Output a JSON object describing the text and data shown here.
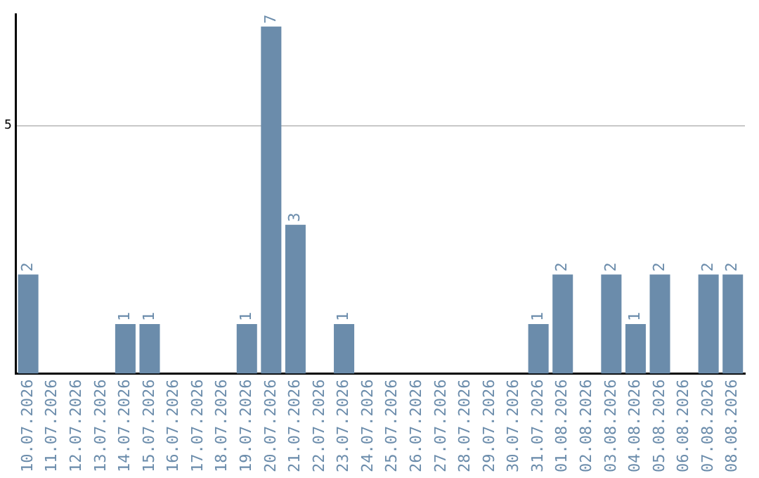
{
  "chart_data": {
    "type": "bar",
    "categories": [
      "10.07.2026",
      "11.07.2026",
      "12.07.2026",
      "13.07.2026",
      "14.07.2026",
      "15.07.2026",
      "16.07.2026",
      "17.07.2026",
      "18.07.2026",
      "19.07.2026",
      "20.07.2026",
      "21.07.2026",
      "22.07.2026",
      "23.07.2026",
      "24.07.2026",
      "25.07.2026",
      "26.07.2026",
      "27.07.2026",
      "28.07.2026",
      "29.07.2026",
      "30.07.2026",
      "31.07.2026",
      "01.08.2026",
      "02.08.2026",
      "03.08.2026",
      "04.08.2026",
      "05.08.2026",
      "06.08.2026",
      "07.08.2026",
      "08.08.2026"
    ],
    "values": [
      2,
      0,
      0,
      0,
      1,
      1,
      0,
      0,
      0,
      1,
      7,
      3,
      0,
      1,
      0,
      0,
      0,
      0,
      0,
      0,
      0,
      1,
      2,
      0,
      2,
      1,
      2,
      0,
      2,
      2
    ],
    "value_labels": [
      "2",
      null,
      null,
      null,
      "1",
      "1",
      null,
      null,
      null,
      "1",
      "7",
      "3",
      null,
      "1",
      null,
      null,
      null,
      null,
      null,
      null,
      null,
      "1",
      "2",
      null,
      "2",
      "1",
      "2",
      null,
      "2",
      "2"
    ],
    "color": "#6b8cab",
    "ylim": [
      0,
      7.25
    ],
    "yticks": [
      5
    ],
    "grid": "y",
    "legend": false
  }
}
